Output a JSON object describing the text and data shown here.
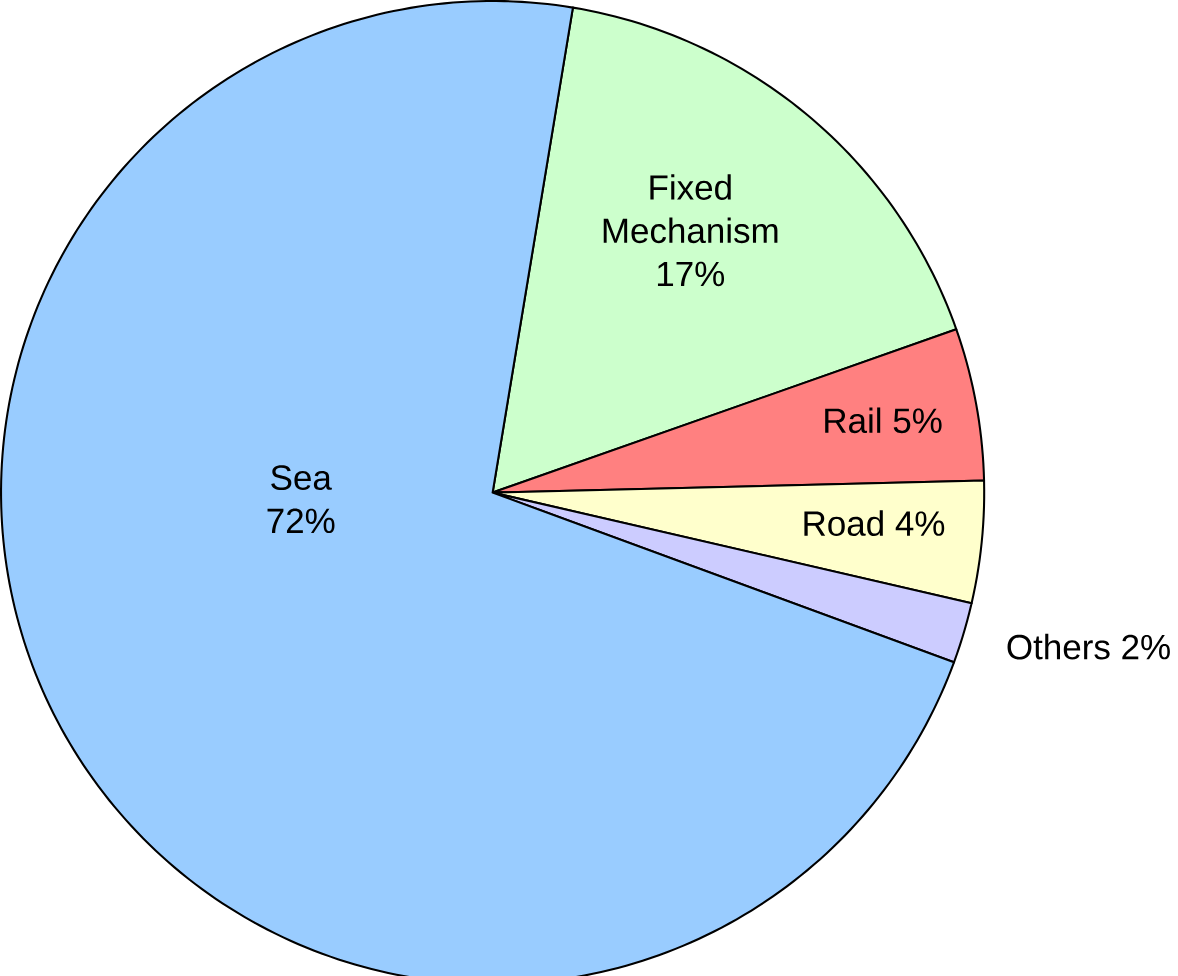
{
  "chart_data": {
    "type": "pie",
    "categories": [
      "Fixed Mechanism",
      "Rail",
      "Road",
      "Others",
      "Sea"
    ],
    "values": [
      17,
      5,
      4,
      2,
      72
    ],
    "value_labels": [
      "17%",
      "5%",
      "4%",
      "2%",
      "72%"
    ],
    "colors": [
      "#ccffcc",
      "#ff8080",
      "#ffffcc",
      "#ccccff",
      "#99ccff"
    ]
  }
}
